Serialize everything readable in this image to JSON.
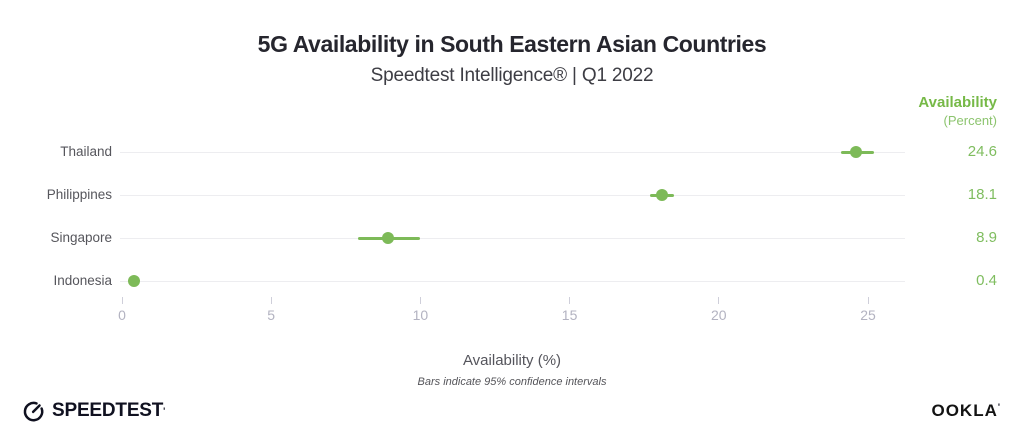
{
  "chart_data": {
    "type": "scatter",
    "title": "5G Availability in South Eastern Asian Countries",
    "subtitle": "Speedtest Intelligence® | Q1 2022",
    "value_column": {
      "header": "Availability",
      "subheader": "(Percent)"
    },
    "categories": [
      "Thailand",
      "Philippines",
      "Singapore",
      "Indonesia"
    ],
    "values": [
      24.6,
      18.1,
      8.9,
      0.4
    ],
    "ci_low": [
      24.1,
      17.7,
      7.9,
      0.4
    ],
    "ci_high": [
      25.2,
      18.5,
      10.0,
      0.4
    ],
    "xticks": [
      0,
      5,
      10,
      15,
      20,
      25
    ],
    "xlim": [
      0,
      26.2
    ],
    "xlabel": "Availability (%)",
    "note": "Bars indicate 95% confidence intervals",
    "accent_color": "#7DBA58",
    "grid": "horizontal-only",
    "legend_position": "none"
  },
  "footer": {
    "speedtest_label": "SPEEDTEST",
    "speedtest_tm": "'",
    "ookla_label": "OOKLA",
    "ookla_tm": "'"
  }
}
